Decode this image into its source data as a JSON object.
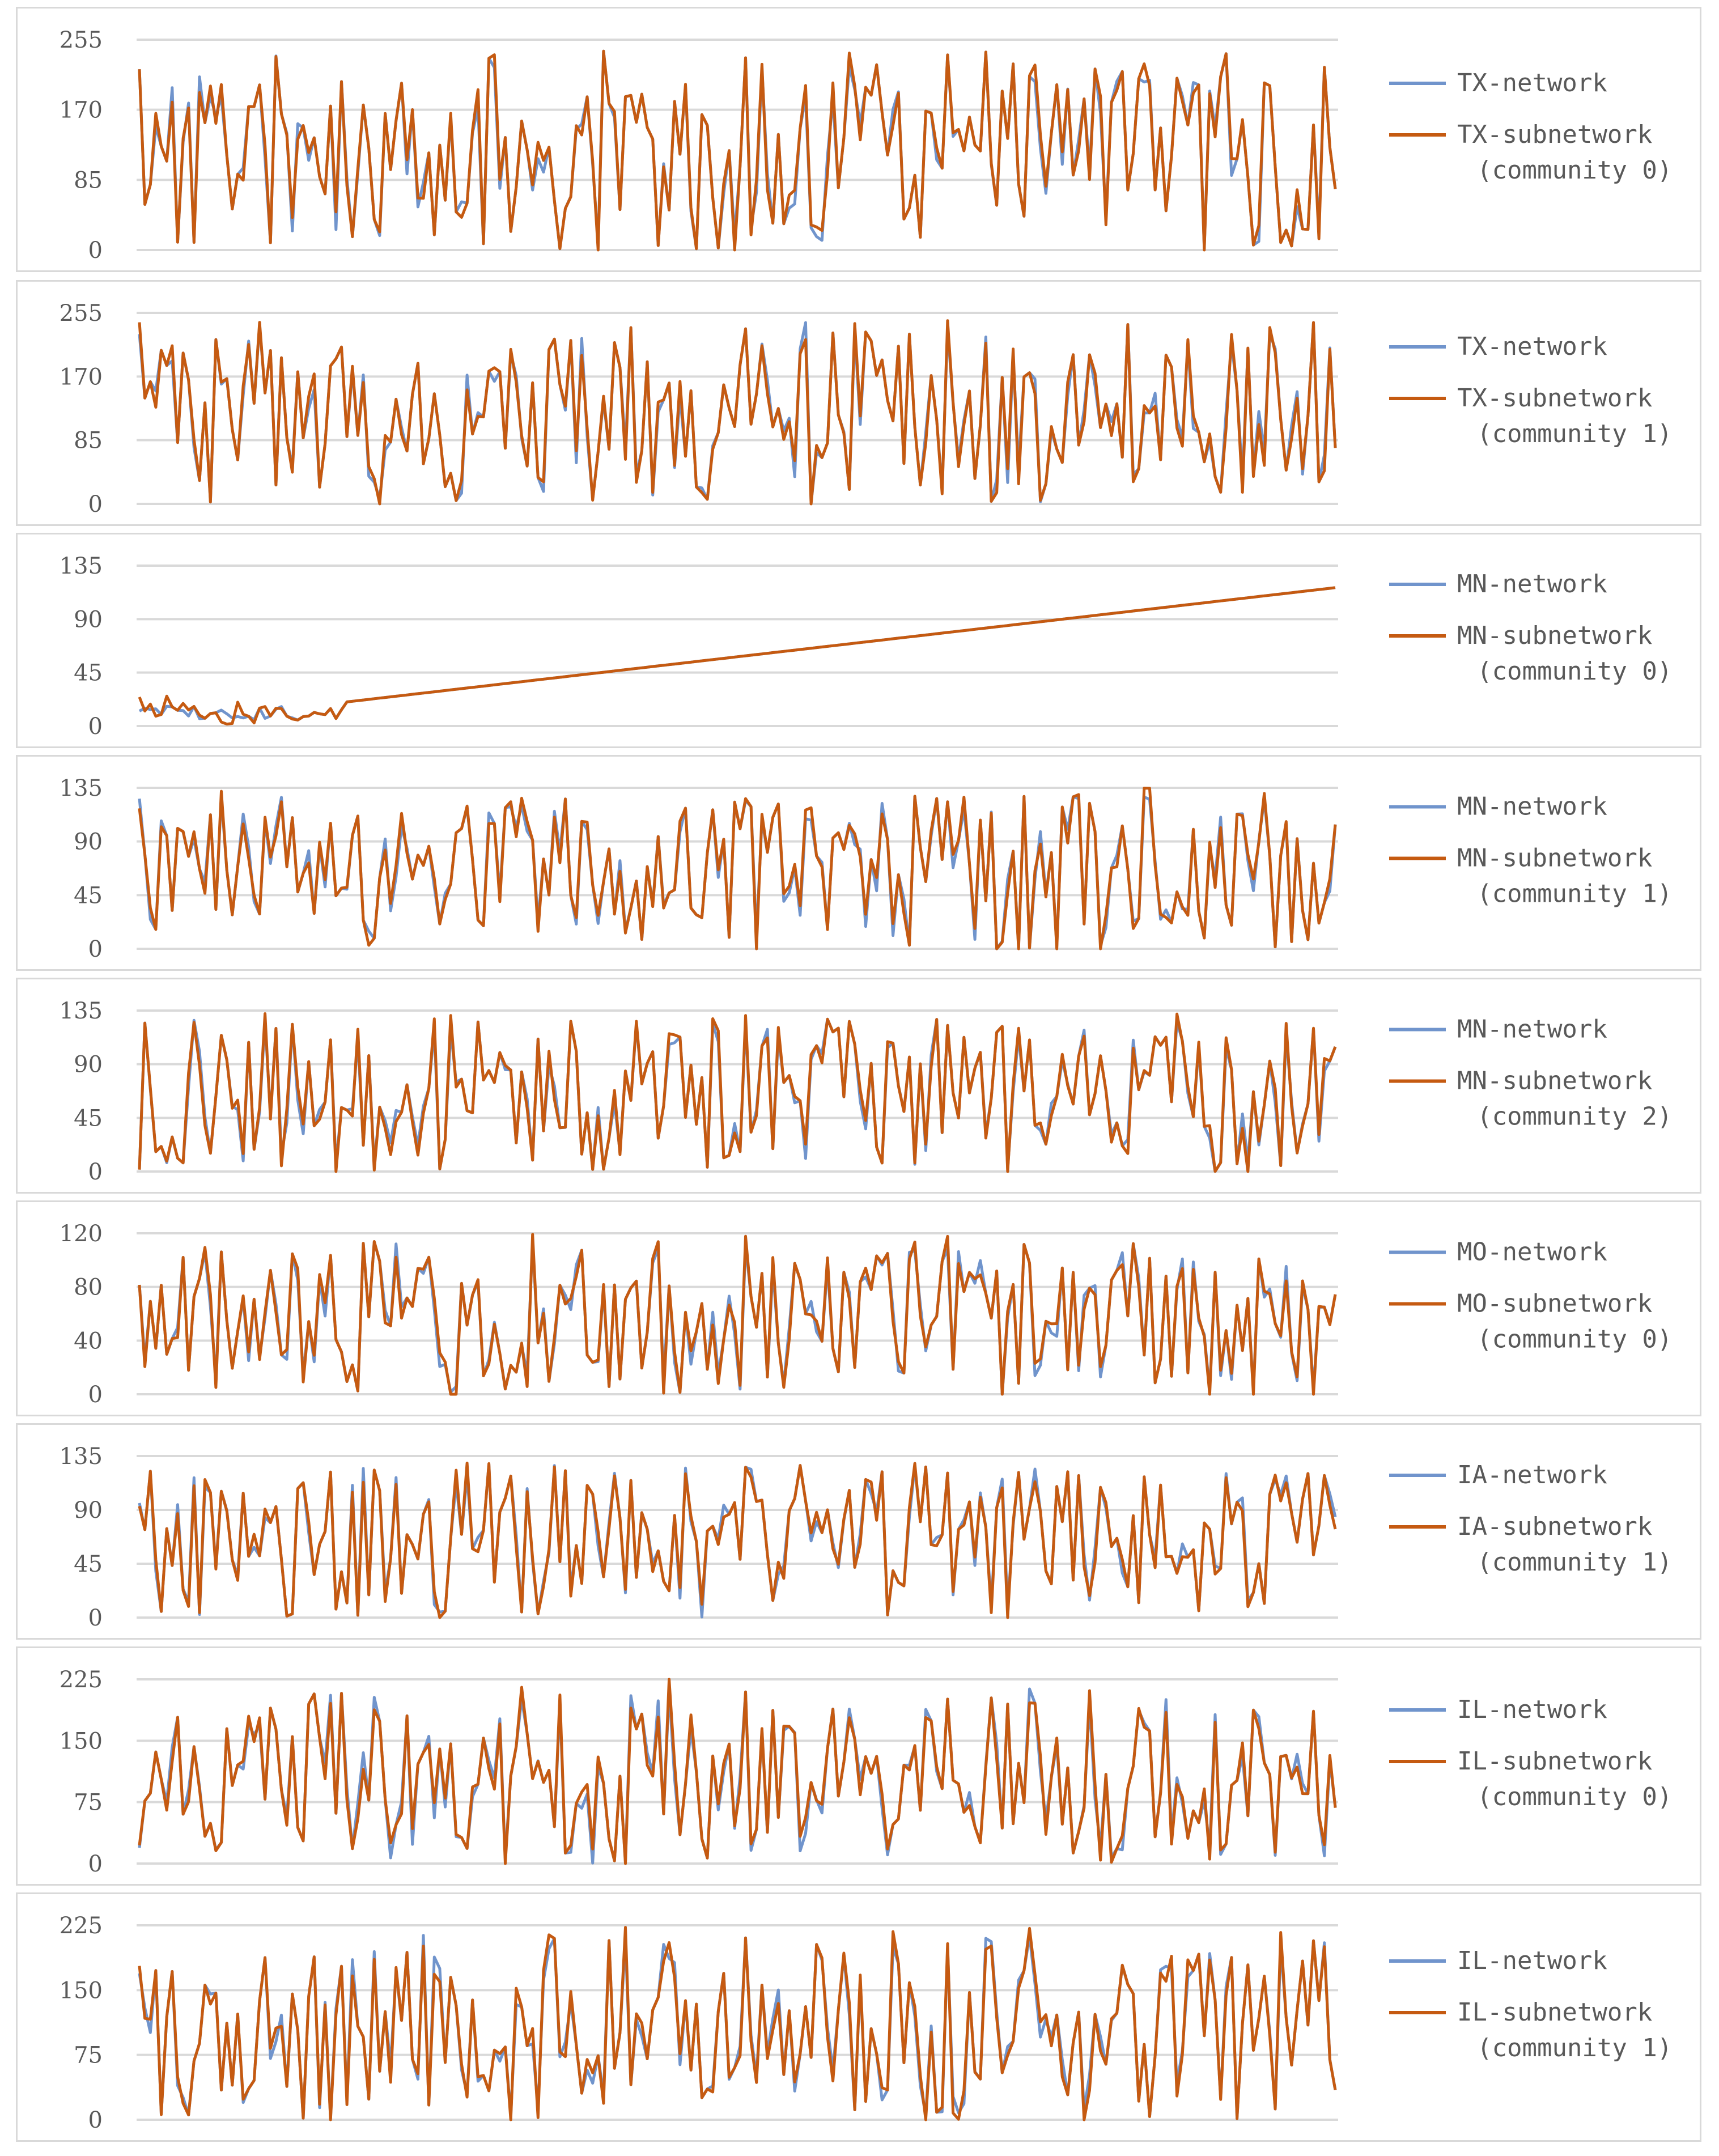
{
  "colors": {
    "network": "#7094cc",
    "subnetwork": "#c55a11",
    "grid": "#d9d9d9",
    "text": "#595959"
  },
  "charts": [
    {
      "ymax": 255,
      "ticks": [
        "255",
        "170",
        "85",
        "0"
      ],
      "network_label": "TX-network",
      "sub_label": "TX-subnetwork",
      "sub_label2": "(community 0)",
      "seed": 11
    },
    {
      "ymax": 255,
      "ticks": [
        "255",
        "170",
        "85",
        "0"
      ],
      "network_label": "TX-network",
      "sub_label": "TX-subnetwork",
      "sub_label2": "(community 1)",
      "seed": 23
    },
    {
      "ymax": 135,
      "ticks": [
        "135",
        "90",
        "45",
        "0"
      ],
      "network_label": "MN-network",
      "sub_label": "MN-subnetwork",
      "sub_label2": "(community 0)",
      "seed": 37,
      "linear_after": 0.17
    },
    {
      "ymax": 135,
      "ticks": [
        "135",
        "90",
        "45",
        "0"
      ],
      "network_label": "MN-network",
      "sub_label": "MN-subnetwork",
      "sub_label2": "(community 1)",
      "seed": 41
    },
    {
      "ymax": 135,
      "ticks": [
        "135",
        "90",
        "45",
        "0"
      ],
      "network_label": "MN-network",
      "sub_label": "MN-subnetwork",
      "sub_label2": "(community 2)",
      "seed": 53
    },
    {
      "ymax": 120,
      "ticks": [
        "120",
        "80",
        "40",
        "0"
      ],
      "network_label": "MO-network",
      "sub_label": "MO-subnetwork",
      "sub_label2": "(community 0)",
      "seed": 67
    },
    {
      "ymax": 135,
      "ticks": [
        "135",
        "90",
        "45",
        "0"
      ],
      "network_label": "IA-network",
      "sub_label": "IA-subnetwork",
      "sub_label2": "(community 1)",
      "seed": 79
    },
    {
      "ymax": 225,
      "ticks": [
        "225",
        "150",
        "75",
        "0"
      ],
      "network_label": "IL-network",
      "sub_label": "IL-subnetwork",
      "sub_label2": "(community 0)",
      "seed": 83
    },
    {
      "ymax": 225,
      "ticks": [
        "225",
        "150",
        "75",
        "0"
      ],
      "network_label": "IL-network",
      "sub_label": "IL-subnetwork",
      "sub_label2": "(community 1)",
      "seed": 97
    }
  ],
  "chart_data": {
    "type": "line",
    "panels": 9,
    "points_per_series": 220,
    "note": "Each panel overlays a network series and its community subnetwork series; values read approximately from the figure."
  }
}
